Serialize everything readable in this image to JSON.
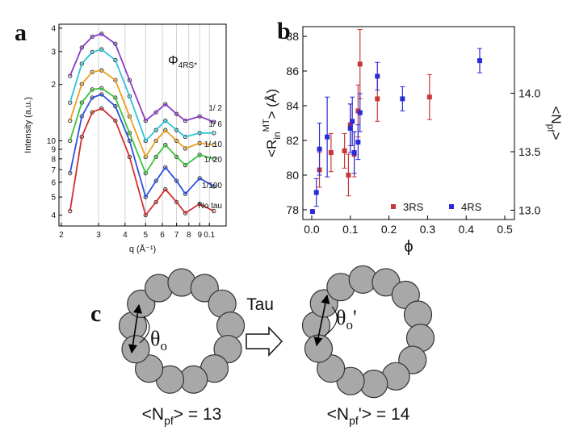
{
  "chart_data": [
    {
      "type": "line",
      "label": "a",
      "xlabel": "q (Å⁻¹)",
      "ylabel": "Intensity (a.u.)",
      "xscale": "log",
      "yscale": "log",
      "grid": "x",
      "legend_title": "Φ",
      "legend_title_sub": "4RS*",
      "marker_color": "#222222",
      "x": [
        0.022,
        0.025,
        0.028,
        0.031,
        0.036,
        0.042,
        0.05,
        0.056,
        0.062,
        0.07,
        0.077,
        0.09,
        0.105
      ],
      "xlim": [
        0.0195,
        0.12
      ],
      "ylim": [
        3.5,
        42
      ],
      "xticks": [
        {
          "value": 0.02,
          "label": "2"
        },
        {
          "value": 0.03,
          "label": "3"
        },
        {
          "value": 0.04,
          "label": "4"
        },
        {
          "value": 0.05,
          "label": "5"
        },
        {
          "value": 0.06,
          "label": "6"
        },
        {
          "value": 0.07,
          "label": "7"
        },
        {
          "value": 0.08,
          "label": "8"
        },
        {
          "value": 0.09,
          "label": "9"
        },
        0.1
      ],
      "yticks": [
        4,
        5,
        6,
        7,
        8,
        9,
        10,
        {
          "value": 20,
          "label": "2"
        },
        {
          "value": 30,
          "label": "3"
        },
        {
          "value": 40,
          "label": "4"
        }
      ],
      "series": [
        {
          "name": "1/ 2",
          "color": "#8a3cc8",
          "values": [
            22.2,
            31.5,
            36,
            37.3,
            33,
            21.1,
            12.8,
            14.2,
            15.7,
            13.9,
            12.8,
            13.5,
            12.6
          ]
        },
        {
          "name": "1/ 6",
          "color": "#2ec4d6",
          "values": [
            16.0,
            25.8,
            29.8,
            30.8,
            27.0,
            17.3,
            10.0,
            11.4,
            12.8,
            11.4,
            10.5,
            11.0,
            11.0
          ]
        },
        {
          "name": "1/ 10",
          "color": "#e8a020",
          "values": [
            12.8,
            20.1,
            23.3,
            23.8,
            21.1,
            13.5,
            8.2,
            10.0,
            11.4,
            10.0,
            9.1,
            9.7,
            9.5
          ]
        },
        {
          "name": "1/ 20",
          "color": "#3cc43c",
          "values": [
            10.0,
            16.0,
            18.8,
            19.1,
            17.0,
            11.0,
            6.7,
            8.2,
            9.5,
            8.2,
            7.4,
            8.4,
            8.0
          ]
        },
        {
          "name": "1/100",
          "color": "#3050e0",
          "values": [
            6.7,
            13.5,
            17.0,
            17.7,
            15.3,
            10.0,
            5.0,
            6.1,
            7.2,
            6.1,
            5.2,
            6.3,
            5.7
          ]
        },
        {
          "name": "No tau",
          "color": "#d03030",
          "values": [
            4.2,
            10.5,
            14.2,
            14.9,
            12.8,
            8.2,
            4.0,
            4.7,
            5.5,
            4.7,
            4.1,
            4.6,
            4.2
          ]
        }
      ]
    },
    {
      "type": "scatter",
      "label": "b",
      "xlabel": "ϕ",
      "ylabel": {
        "base": "<R",
        "sub": "in",
        "sup": "MT",
        "tail": "> (Å)"
      },
      "y2label": {
        "base": "<N",
        "sub": "pf",
        "tail": ">"
      },
      "legend": "lower right",
      "xlim": [
        -0.023,
        0.525
      ],
      "ylim": [
        77.44,
        88.56
      ],
      "y2lim": [
        12.92,
        14.57
      ],
      "xticks": [
        {
          "value": 0,
          "label": "0.0"
        },
        0.1,
        0.2,
        0.3,
        0.4,
        0.5
      ],
      "yticks": [
        78,
        80,
        82,
        84,
        86,
        88
      ],
      "y2ticks": [
        {
          "value": 13,
          "label": "13.0"
        },
        13.5,
        {
          "value": 14,
          "label": "14.0"
        }
      ],
      "series": [
        {
          "name": "3RS",
          "color": "#c8373a",
          "x": [
            0.02,
            0.05,
            0.085,
            0.095,
            0.1,
            0.11,
            0.12,
            0.125,
            0.17,
            0.305
          ],
          "values": [
            80.3,
            81.3,
            81.4,
            80.0,
            82.9,
            81.2,
            83.7,
            86.4,
            84.4,
            84.5
          ],
          "errors": [
            1.0,
            1.1,
            1.0,
            1.2,
            1.2,
            1.3,
            1.5,
            2.0,
            1.3,
            1.3
          ]
        },
        {
          "name": "4RS",
          "color": "#2b2bd6",
          "x": [
            0.002,
            0.012,
            0.02,
            0.04,
            0.1,
            0.105,
            0.11,
            0.12,
            0.125,
            0.17,
            0.235,
            0.435
          ],
          "values": [
            77.9,
            79.0,
            81.5,
            82.2,
            82.7,
            83.1,
            81.3,
            81.9,
            83.6,
            85.7,
            84.4,
            86.6
          ],
          "errors": [
            0,
            0.8,
            1.5,
            2.3,
            1.4,
            1.4,
            1.2,
            1.0,
            1.1,
            0.8,
            0.7,
            0.7
          ]
        }
      ]
    }
  ],
  "diagram": {
    "label": "c",
    "arrow_label": "Tau",
    "left": {
      "angle": "θ",
      "angle_sub": "o",
      "angle_tail": "",
      "caption_base": "<N",
      "caption_sub": "pf",
      "caption_tail": "> = ",
      "count": 13
    },
    "right": {
      "angle": "θ",
      "angle_sub": "o",
      "angle_tail": "'",
      "caption_base": "<N",
      "caption_sub": "pf",
      "caption_tail": "'> = ",
      "count": 14
    }
  }
}
